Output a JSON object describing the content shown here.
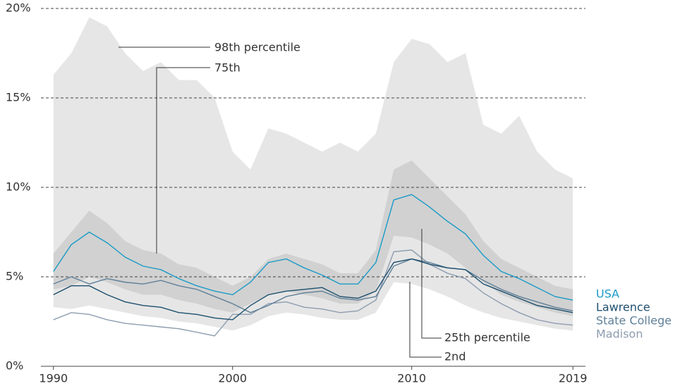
{
  "chart_data": {
    "type": "line",
    "x": [
      1990,
      1991,
      1992,
      1993,
      1994,
      1995,
      1996,
      1997,
      1998,
      1999,
      2000,
      2001,
      2002,
      2003,
      2004,
      2005,
      2006,
      2007,
      2008,
      2009,
      2010,
      2011,
      2012,
      2013,
      2014,
      2015,
      2016,
      2017,
      2018,
      2019
    ],
    "xlim": [
      1989.3,
      2019.7
    ],
    "xticks": [
      1990,
      2000,
      2010,
      2019
    ],
    "ylim": [
      0,
      20
    ],
    "yticks": [
      {
        "value": 0,
        "label": "0%"
      },
      {
        "value": 5,
        "label": "5%"
      },
      {
        "value": 10,
        "label": "10%"
      },
      {
        "value": 15,
        "label": "15%"
      },
      {
        "value": 20,
        "label": "20%"
      }
    ],
    "grid": true,
    "band_colors": [
      "#e6e6e6",
      "#d1d1d1"
    ],
    "percentiles": [
      {
        "name": "98th percentile",
        "values": [
          16.3,
          17.5,
          19.5,
          19,
          17.5,
          16.5,
          17,
          16,
          16,
          15,
          12,
          11,
          13.3,
          13,
          12.5,
          12,
          12.5,
          12,
          13,
          17,
          18.3,
          18,
          17,
          17.5,
          13.5,
          13,
          14,
          12,
          11,
          10.5
        ]
      },
      {
        "name": "75th",
        "values": [
          6.3,
          7.5,
          8.7,
          8,
          7,
          6.5,
          6.3,
          5.7,
          5.5,
          5,
          4.5,
          5,
          6,
          6.3,
          6,
          5.7,
          5.2,
          5.2,
          6.5,
          11,
          11.5,
          10.5,
          9.5,
          8.5,
          7,
          6,
          5.5,
          5,
          4.5,
          4.3
        ]
      },
      {
        "name": "25th percentile",
        "values": [
          4.3,
          4.5,
          5,
          4.7,
          4.3,
          4,
          4,
          3.7,
          3.5,
          3.2,
          3,
          3.5,
          4,
          4.2,
          4,
          3.8,
          3.5,
          3.5,
          4.2,
          7.3,
          7.2,
          6.8,
          6.3,
          5.5,
          4.7,
          4,
          3.6,
          3.3,
          3,
          2.8
        ]
      },
      {
        "name": "2nd",
        "values": [
          3.3,
          3.2,
          3.4,
          3.2,
          3,
          2.8,
          2.7,
          2.5,
          2.4,
          2.2,
          2,
          2.3,
          2.8,
          3,
          2.9,
          2.7,
          2.6,
          2.6,
          3,
          4.7,
          4.6,
          4.3,
          3.9,
          3.4,
          3,
          2.7,
          2.5,
          2.3,
          2.1,
          2
        ]
      }
    ],
    "series": [
      {
        "name": "USA",
        "color": "#1a9bc7",
        "values": [
          5.3,
          6.8,
          7.5,
          6.9,
          6.1,
          5.6,
          5.4,
          4.9,
          4.5,
          4.2,
          4,
          4.7,
          5.8,
          6,
          5.5,
          5.1,
          4.6,
          4.6,
          5.8,
          9.3,
          9.6,
          8.9,
          8.1,
          7.4,
          6.2,
          5.3,
          4.9,
          4.4,
          3.9,
          3.7
        ]
      },
      {
        "name": "Lawrence",
        "color": "#1d4f6e",
        "values": [
          4,
          4.5,
          4.5,
          4,
          3.6,
          3.4,
          3.3,
          3,
          2.9,
          2.7,
          2.6,
          3.4,
          4,
          4.2,
          4.3,
          4.4,
          3.9,
          3.8,
          4.2,
          5.8,
          6,
          5.7,
          5.5,
          5.4,
          4.6,
          4.2,
          3.8,
          3.4,
          3.2,
          3
        ]
      },
      {
        "name": "State College",
        "color": "#5f7f98",
        "values": [
          4.6,
          5,
          4.6,
          4.9,
          4.7,
          4.6,
          4.8,
          4.5,
          4.3,
          3.9,
          3.5,
          3,
          3.4,
          3.9,
          4.1,
          4.2,
          3.8,
          3.7,
          3.9,
          5.6,
          6,
          5.8,
          5.5,
          5.4,
          4.8,
          4.3,
          3.9,
          3.6,
          3.3,
          3.1
        ]
      },
      {
        "name": "Madison",
        "color": "#8e9db0",
        "values": [
          2.6,
          3,
          2.9,
          2.6,
          2.4,
          2.3,
          2.2,
          2.1,
          1.9,
          1.7,
          2.9,
          2.9,
          3.5,
          3.6,
          3.3,
          3.2,
          3,
          3.1,
          3.7,
          6.4,
          6.5,
          5.7,
          5.2,
          4.9,
          4.1,
          3.5,
          3,
          2.6,
          2.4,
          2.3
        ]
      }
    ]
  }
}
